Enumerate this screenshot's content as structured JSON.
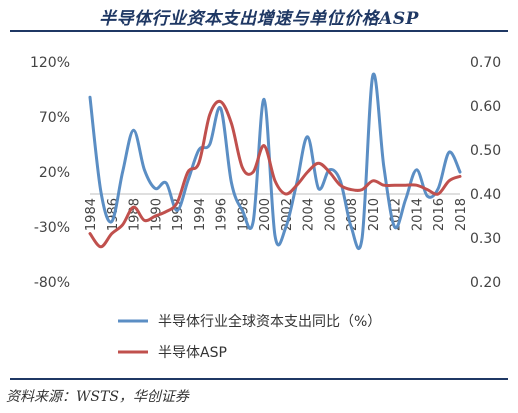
{
  "title": "半导体行业资本支出增速与单位价格ASP",
  "source": "资料来源：WSTS，华创证券",
  "colors": {
    "capex": "#5b8ec4",
    "asp": "#c0504d",
    "title": "#1f3864"
  },
  "chart_data": {
    "type": "line",
    "title": "半导体行业资本支出增速与单位价格ASP",
    "x": [
      1984,
      1985,
      1986,
      1987,
      1988,
      1989,
      1990,
      1991,
      1992,
      1993,
      1994,
      1995,
      1996,
      1997,
      1998,
      1999,
      2000,
      2001,
      2002,
      2003,
      2004,
      2005,
      2006,
      2007,
      2008,
      2009,
      2010,
      2011,
      2012,
      2013,
      2014,
      2015,
      2016,
      2017,
      2018
    ],
    "x_tick_labels": [
      "1984",
      "1986",
      "1988",
      "1990",
      "1992",
      "1994",
      "1996",
      "1998",
      "2000",
      "2002",
      "2004",
      "2006",
      "2008",
      "2010",
      "2012",
      "2014",
      "2016",
      "2018"
    ],
    "left_axis": {
      "ylim": [
        -80,
        120
      ],
      "ticks": [
        "-80%",
        "-30%",
        "20%",
        "70%",
        "120%"
      ],
      "tick_values": [
        -80,
        -30,
        20,
        70,
        120
      ]
    },
    "right_axis": {
      "ylim": [
        0.2,
        0.7
      ],
      "ticks": [
        "0.20",
        "0.30",
        "0.40",
        "0.50",
        "0.60",
        "0.70"
      ],
      "tick_values": [
        0.2,
        0.3,
        0.4,
        0.5,
        0.6,
        0.7
      ]
    },
    "legend_placement": "bottom",
    "grid": false,
    "series": [
      {
        "name": "半导体行业全球资本支出同比（%）",
        "axis": "left",
        "values": [
          88,
          2,
          -25,
          20,
          58,
          22,
          5,
          10,
          -15,
          12,
          40,
          45,
          78,
          10,
          -15,
          -25,
          86,
          -38,
          -30,
          10,
          52,
          5,
          22,
          12,
          -30,
          -40,
          108,
          25,
          -30,
          -5,
          22,
          -2,
          5,
          38,
          20
        ]
      },
      {
        "name": "半导体ASP",
        "axis": "right",
        "values": [
          0.31,
          0.28,
          0.31,
          0.33,
          0.37,
          0.34,
          0.35,
          0.36,
          0.38,
          0.45,
          0.47,
          0.58,
          0.61,
          0.56,
          0.46,
          0.45,
          0.51,
          0.43,
          0.4,
          0.42,
          0.45,
          0.47,
          0.45,
          0.42,
          0.41,
          0.41,
          0.43,
          0.42,
          0.42,
          0.42,
          0.42,
          0.41,
          0.4,
          0.43,
          0.44
        ]
      }
    ]
  }
}
